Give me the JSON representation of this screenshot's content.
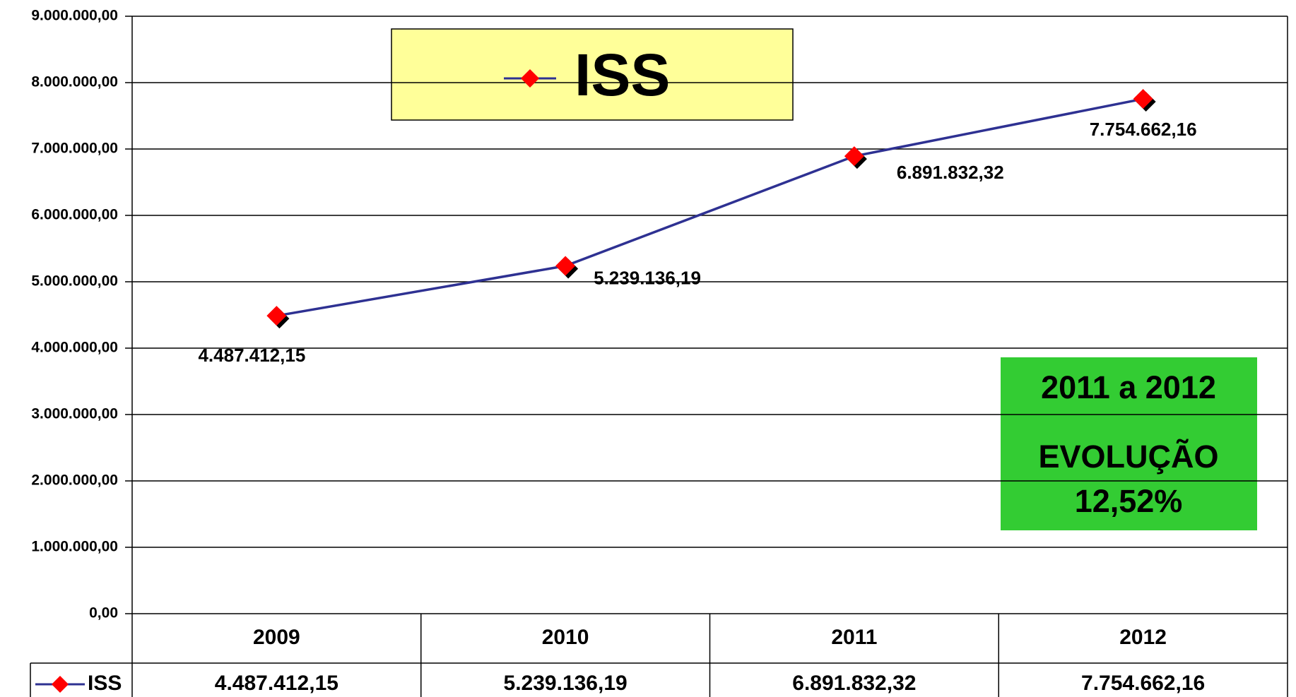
{
  "chart_data": {
    "type": "line",
    "categories": [
      "2009",
      "2010",
      "2011",
      "2012"
    ],
    "series": [
      {
        "name": "ISS",
        "color": "#2e3192",
        "marker_color": "#ff0000",
        "values": [
          4487412.15,
          5239136.19,
          6891832.32,
          7754662.16
        ],
        "value_labels": [
          "4.487.412,15",
          "5.239.136,19",
          "6.891.832,32",
          "7.754.662,16"
        ]
      }
    ],
    "ylim": [
      0,
      9000000
    ],
    "yticks": [
      {
        "value": 0,
        "label": "0,00"
      },
      {
        "value": 1000000,
        "label": "1.000.000,00"
      },
      {
        "value": 2000000,
        "label": "2.000.000,00"
      },
      {
        "value": 3000000,
        "label": "3.000.000,00"
      },
      {
        "value": 4000000,
        "label": "4.000.000,00"
      },
      {
        "value": 5000000,
        "label": "5.000.000,00"
      },
      {
        "value": 6000000,
        "label": "6.000.000,00"
      },
      {
        "value": 7000000,
        "label": "7.000.000,00"
      },
      {
        "value": 8000000,
        "label": "8.000.000,00"
      },
      {
        "value": 9000000,
        "label": "9.000.000,00"
      }
    ],
    "grid": true,
    "annotation": [
      "2011 a 2012",
      "EVOLUÇÃO",
      "12,52%"
    ]
  }
}
